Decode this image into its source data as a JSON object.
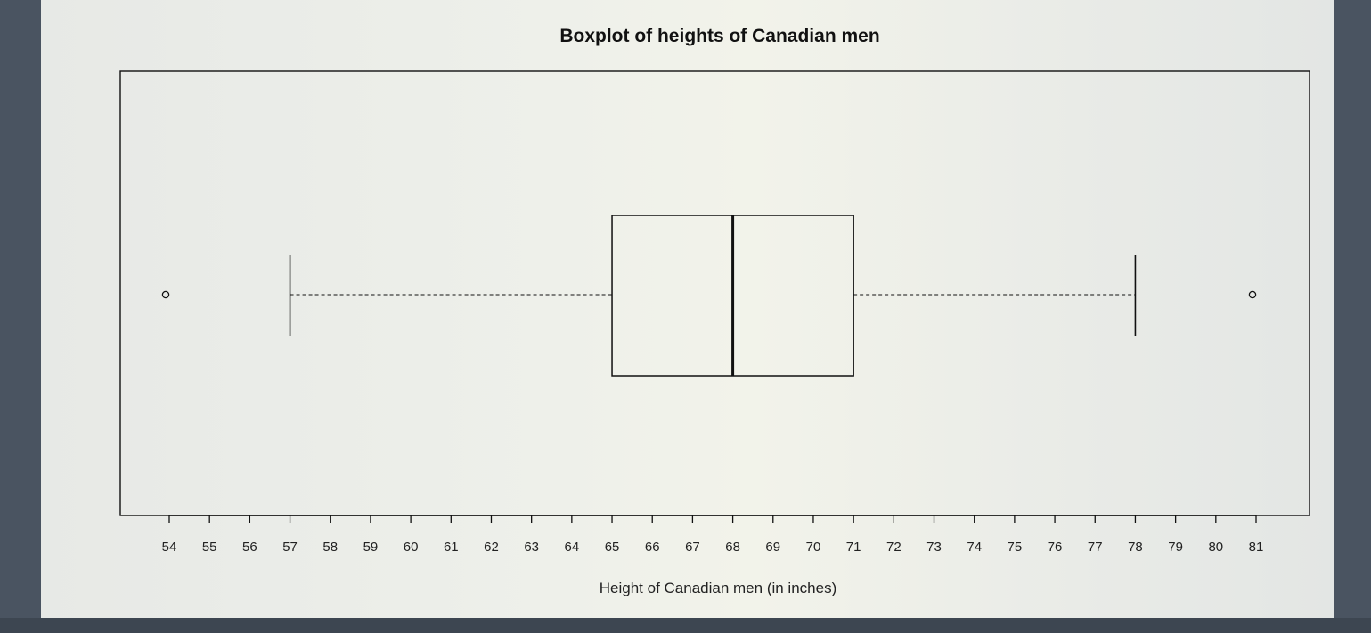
{
  "chart_data": {
    "type": "boxplot",
    "title": "Boxplot of heights of Canadian men",
    "xlabel": "Height of Canadian men (in inches)",
    "ylabel": "",
    "xlim": [
      54,
      81
    ],
    "ticks": [
      54,
      55,
      56,
      57,
      58,
      59,
      60,
      61,
      62,
      63,
      64,
      65,
      66,
      67,
      68,
      69,
      70,
      71,
      72,
      73,
      74,
      75,
      76,
      77,
      78,
      79,
      80,
      81
    ],
    "orientation": "horizontal",
    "whisker_low": 57,
    "q1": 65,
    "median": 68,
    "q3": 71,
    "whisker_high": 78,
    "outliers": [
      54,
      81
    ],
    "grid": false
  },
  "colors": {
    "background": "#eceee9",
    "ink": "#111111"
  }
}
